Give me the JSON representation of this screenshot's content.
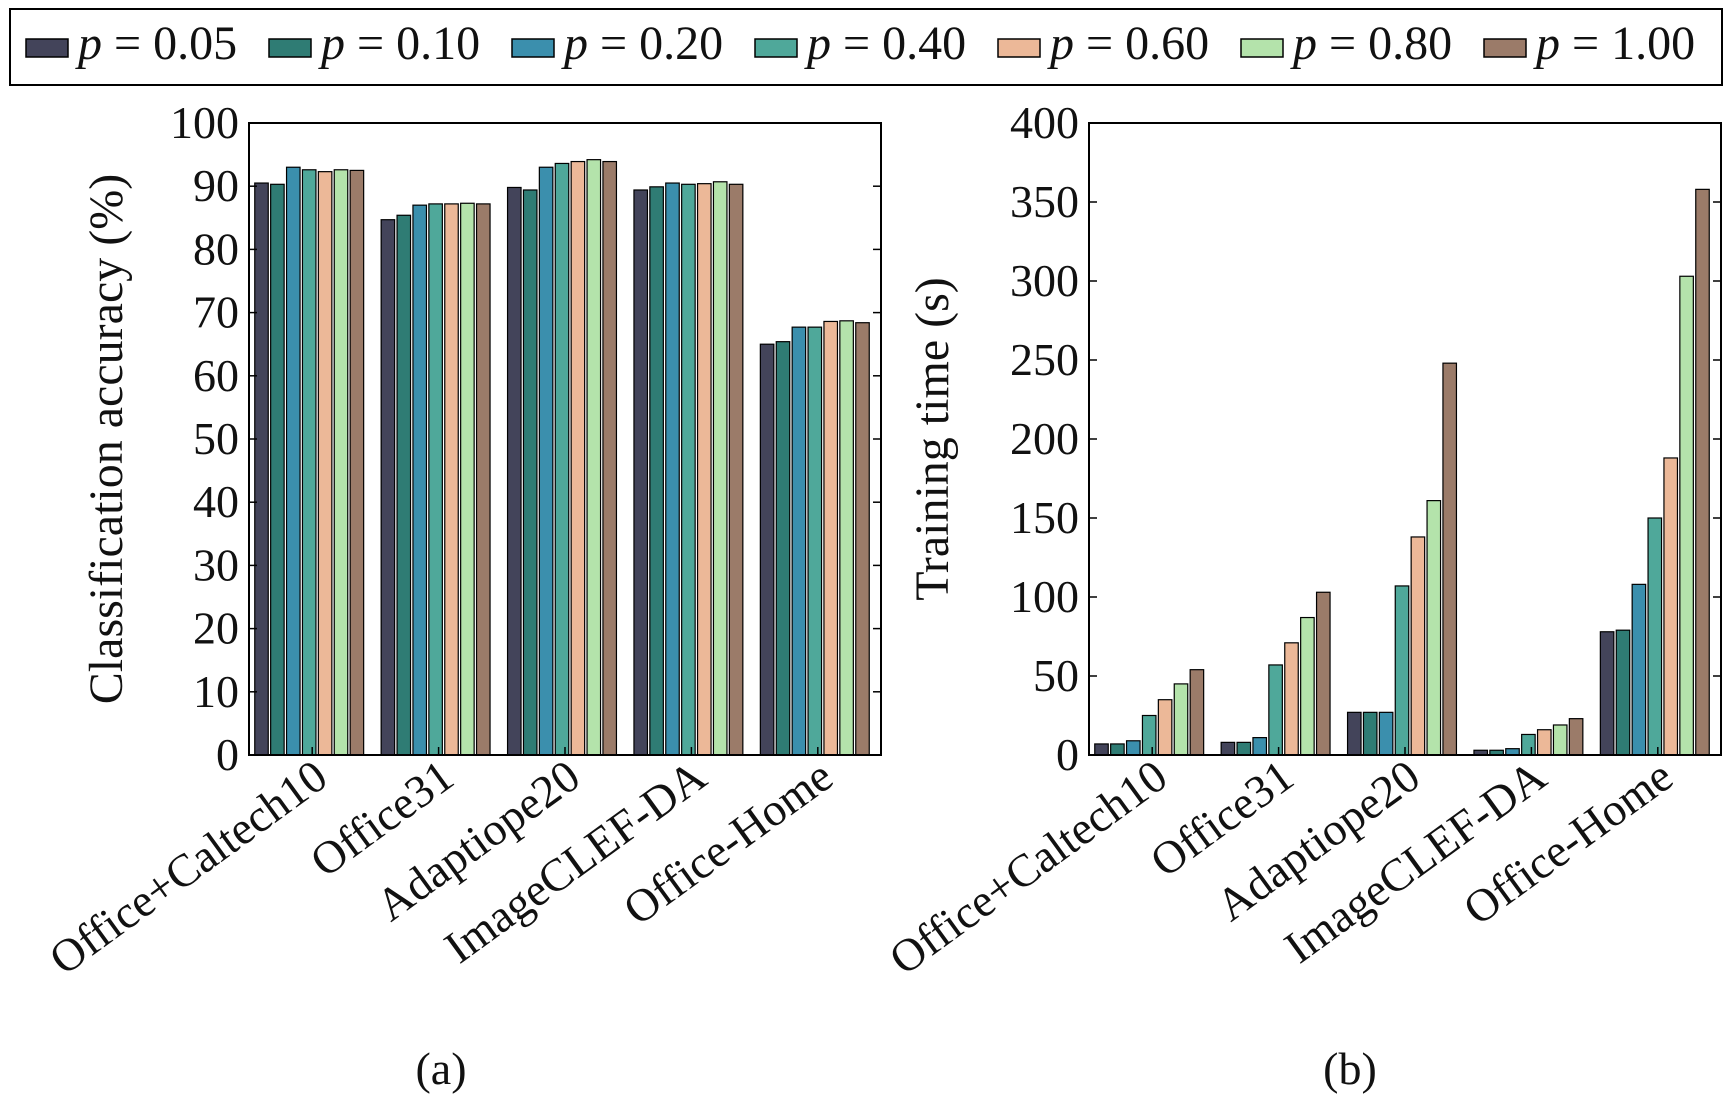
{
  "legend": {
    "items": [
      {
        "p": "p",
        "value": " = 0.05",
        "color": "#43445a"
      },
      {
        "p": "p",
        "value": " = 0.10",
        "color": "#2f7c74"
      },
      {
        "p": "p",
        "value": " = 0.20",
        "color": "#3b8fad"
      },
      {
        "p": "p",
        "value": " = 0.40",
        "color": "#4fa89a"
      },
      {
        "p": "p",
        "value": " = 0.60",
        "color": "#ecb898"
      },
      {
        "p": "p",
        "value": " = 0.80",
        "color": "#b4e3ab"
      },
      {
        "p": "p",
        "value": " = 1.00",
        "color": "#9b7b69"
      }
    ]
  },
  "chart_data": [
    {
      "type": "bar",
      "panel_label": "(a)",
      "ylabel": "Classification accuracy (%)",
      "xlabel": "",
      "ylim": [
        0,
        100
      ],
      "yticks": [
        "0",
        "10",
        "20",
        "30",
        "40",
        "50",
        "60",
        "70",
        "80",
        "90",
        "100"
      ],
      "categories": [
        "Office+Caltech10",
        "Office31",
        "Adaptiope20",
        "ImageCLEF-DA",
        "Office-Home"
      ],
      "grid": false,
      "series": [
        {
          "name": "p = 0.05",
          "values": [
            90.5,
            84.7,
            89.8,
            89.4,
            65.0
          ]
        },
        {
          "name": "p = 0.10",
          "values": [
            90.3,
            85.4,
            89.4,
            89.9,
            65.4
          ]
        },
        {
          "name": "p = 0.20",
          "values": [
            93.0,
            87.0,
            93.0,
            90.5,
            67.7
          ]
        },
        {
          "name": "p = 0.40",
          "values": [
            92.6,
            87.2,
            93.6,
            90.3,
            67.7
          ]
        },
        {
          "name": "p = 0.60",
          "values": [
            92.3,
            87.2,
            93.9,
            90.4,
            68.6
          ]
        },
        {
          "name": "p = 0.80",
          "values": [
            92.6,
            87.3,
            94.2,
            90.7,
            68.7
          ]
        },
        {
          "name": "p = 1.00",
          "values": [
            92.5,
            87.2,
            93.9,
            90.3,
            68.4
          ]
        }
      ]
    },
    {
      "type": "bar",
      "panel_label": "(b)",
      "ylabel": "Training time (s)",
      "xlabel": "",
      "ylim": [
        0,
        400
      ],
      "yticks": [
        "0",
        "50",
        "100",
        "150",
        "200",
        "250",
        "300",
        "350",
        "400"
      ],
      "categories": [
        "Office+Caltech10",
        "Office31",
        "Adaptiope20",
        "ImageCLEF-DA",
        "Office-Home"
      ],
      "grid": false,
      "series": [
        {
          "name": "p = 0.05",
          "values": [
            7,
            8,
            27,
            3,
            78
          ]
        },
        {
          "name": "p = 0.10",
          "values": [
            7,
            8,
            27,
            3,
            79
          ]
        },
        {
          "name": "p = 0.20",
          "values": [
            9,
            11,
            27,
            4,
            108
          ]
        },
        {
          "name": "p = 0.40",
          "values": [
            25,
            57,
            107,
            13,
            150
          ]
        },
        {
          "name": "p = 0.60",
          "values": [
            35,
            71,
            138,
            16,
            188
          ]
        },
        {
          "name": "p = 0.80",
          "values": [
            45,
            87,
            161,
            19,
            303
          ]
        },
        {
          "name": "p = 1.00",
          "values": [
            54,
            103,
            248,
            23,
            358
          ]
        }
      ]
    }
  ]
}
